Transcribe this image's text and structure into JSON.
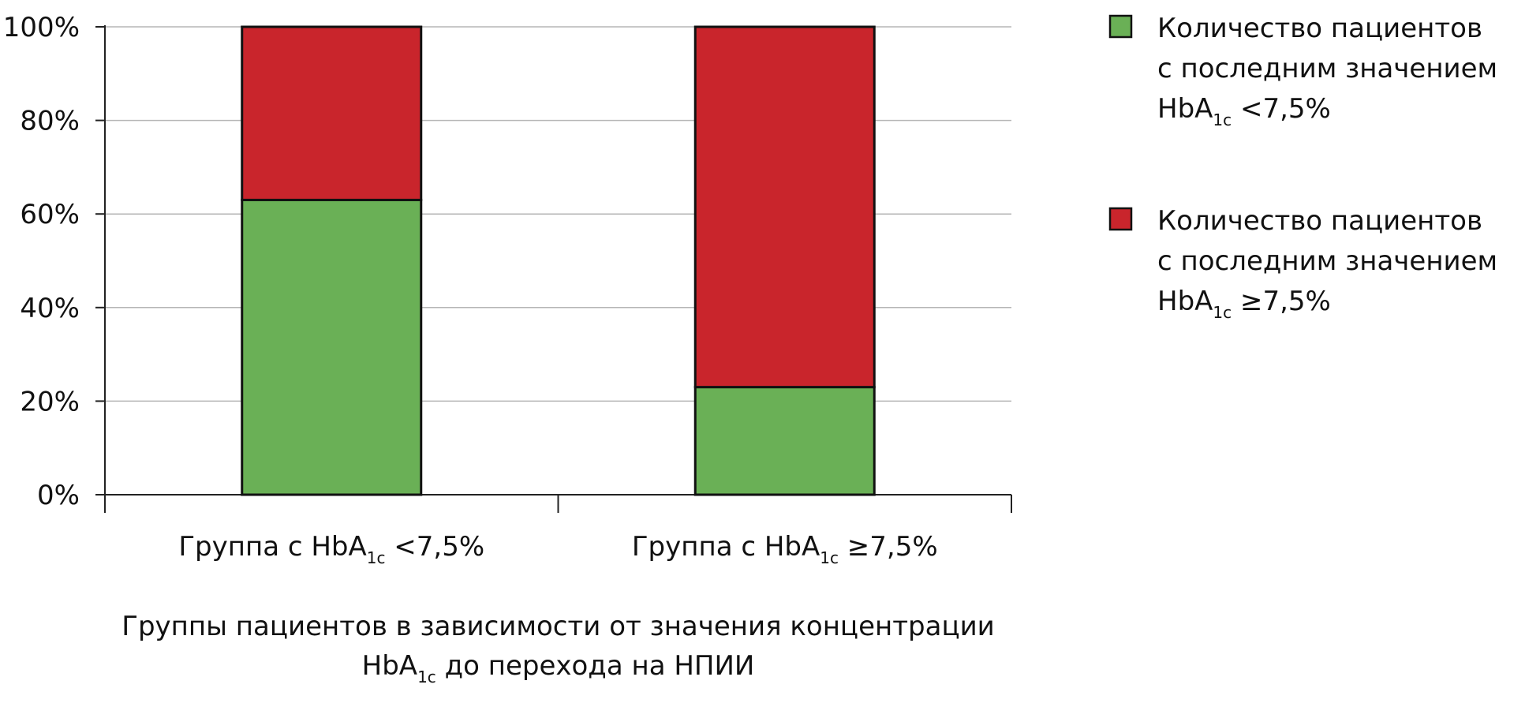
{
  "chart_data": {
    "type": "stacked_bar",
    "categories": [
      [
        "Группа с HbA",
        "1c",
        " <7,5%"
      ],
      [
        "Группа с HbA",
        "1c",
        " ≥7,5%"
      ]
    ],
    "x_label": [
      [
        "Группы пациентов в зависимости от значения концентрации"
      ],
      [
        "HbA",
        "1c",
        " до перехода на НПИИ"
      ]
    ],
    "series": [
      {
        "name": [
          [
            "Количество пациентов"
          ],
          [
            "с последним значением"
          ],
          [
            "HbA",
            "1c",
            " <7,5%"
          ]
        ],
        "color": "#6ab056",
        "values": [
          63,
          23
        ]
      },
      {
        "name": [
          [
            "Количество пациентов"
          ],
          [
            "с последним значением"
          ],
          [
            "HbA",
            "1c",
            " ≥7,5%"
          ]
        ],
        "color": "#c9252c",
        "values": [
          37,
          77
        ]
      }
    ],
    "ylim": [
      0,
      100
    ],
    "yticks": [
      {
        "value": 0,
        "label": "0%"
      },
      {
        "value": 20,
        "label": "20%"
      },
      {
        "value": 40,
        "label": "40%"
      },
      {
        "value": 60,
        "label": "60%"
      },
      {
        "value": 80,
        "label": "80%"
      },
      {
        "value": 100,
        "label": "100%"
      }
    ],
    "grid": true,
    "legend": "right"
  }
}
